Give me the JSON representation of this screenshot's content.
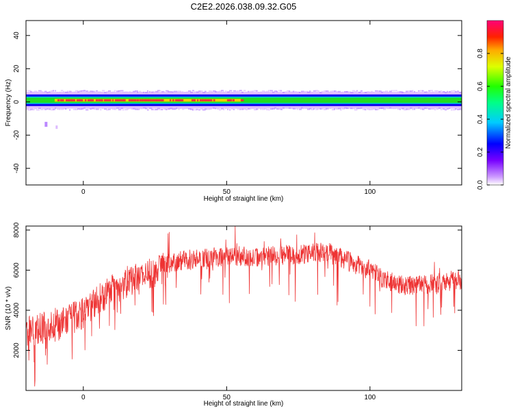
{
  "title": "C2E2.2026.038.09.32.G05",
  "colors": {
    "snr_line": "#ee3333",
    "band_core": "#ee3333",
    "band_mid": "#22dd22",
    "band_edge": "#1100ee",
    "band_halo": "#cc88ff"
  },
  "chart_data": [
    {
      "type": "heatmap",
      "name": "spectrogram",
      "xlabel": "Height of straight line (km)",
      "ylabel": "Frequency (Hz)",
      "xlim": [
        -20,
        132
      ],
      "ylim": [
        -50,
        49
      ],
      "x_ticks": [
        0,
        50,
        100
      ],
      "y_ticks": [
        40,
        20,
        0,
        -20,
        -40
      ],
      "grid": false,
      "colorbar": {
        "label": "Normalized spectral amplitude",
        "range": [
          0,
          1
        ],
        "ticks": [
          "0.0",
          "0.2",
          "0.4",
          "0.6",
          "0.8"
        ],
        "colormap": "rainbow (magenta → blue → cyan → green → yellow → red → pink)"
      },
      "band": {
        "center_hz": 1,
        "halo_halfwidth_hz": 5,
        "edge_halfwidth_hz": 3.5,
        "core_halfwidth_hz": 2.2,
        "peak_x_range": [
          -10,
          55
        ],
        "peak_amplitude": 0.9,
        "background_amplitude": 0.55
      },
      "artifact": {
        "x": -13,
        "y_range": [
          -12,
          -15
        ]
      }
    },
    {
      "type": "line",
      "name": "snr",
      "xlabel": "Height of straight line (km)",
      "ylabel": "SNR (10 * v/v)",
      "xlim": [
        -20,
        132
      ],
      "ylim": [
        0,
        8200
      ],
      "x_ticks": [
        0,
        50,
        100
      ],
      "y_ticks": [
        2000,
        4000,
        6000,
        8000
      ],
      "grid": false,
      "trend": {
        "x": [
          -20,
          -15,
          -10,
          -5,
          0,
          5,
          10,
          15,
          20,
          25,
          30,
          35,
          40,
          45,
          50,
          55,
          60,
          65,
          70,
          75,
          80,
          85,
          90,
          95,
          100,
          105,
          110,
          115,
          120,
          125,
          130,
          132
        ],
        "y": [
          3000,
          3100,
          3200,
          3500,
          3900,
          4500,
          5000,
          5400,
          5600,
          5900,
          6300,
          6500,
          6600,
          6650,
          6700,
          6700,
          6650,
          6700,
          6750,
          6800,
          6850,
          6900,
          6600,
          6300,
          6000,
          5500,
          5300,
          5200,
          5300,
          5400,
          5500,
          5500
        ]
      },
      "noise_amplitude": 500,
      "notable_points": [
        {
          "x": -17,
          "y": 200
        },
        {
          "x": -19,
          "y": 1500
        },
        {
          "x": 30,
          "y": 7900
        },
        {
          "x": 53,
          "y": 8200
        }
      ]
    }
  ]
}
